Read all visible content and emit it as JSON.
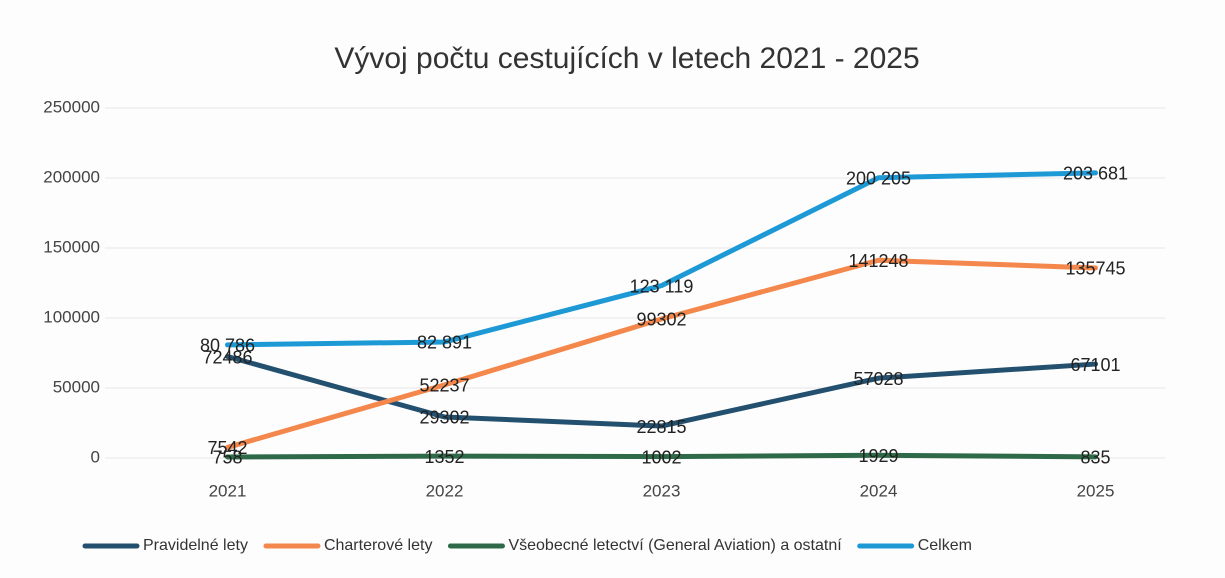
{
  "chart_data": {
    "type": "line",
    "title": "Vývoj počtu cestujících v letech 2021 - 2025",
    "categories": [
      "2021",
      "2022",
      "2023",
      "2024",
      "2025"
    ],
    "series": [
      {
        "name": "Pravidelné lety",
        "color": "#24506f",
        "values": [
          72486,
          29302,
          22815,
          57028,
          67101
        ]
      },
      {
        "name": "Charterové lety",
        "color": "#f4874b",
        "values": [
          7542,
          52237,
          99302,
          141248,
          135745
        ]
      },
      {
        "name": "Všeobecné letectví (General Aviation) a ostatní",
        "color": "#2f6a48",
        "values": [
          758,
          1352,
          1002,
          1929,
          835
        ]
      },
      {
        "name": "Celkem",
        "color": "#1d99d6",
        "values": [
          80786,
          82891,
          123119,
          200205,
          203681
        ],
        "value_labels": [
          "80 786",
          "82 891",
          "123 119",
          "200 205",
          "203 681"
        ]
      }
    ],
    "ylim": [
      0,
      250000
    ],
    "yticks": [
      0,
      50000,
      100000,
      150000,
      200000,
      250000
    ],
    "grid": true,
    "legend": "bottom"
  }
}
